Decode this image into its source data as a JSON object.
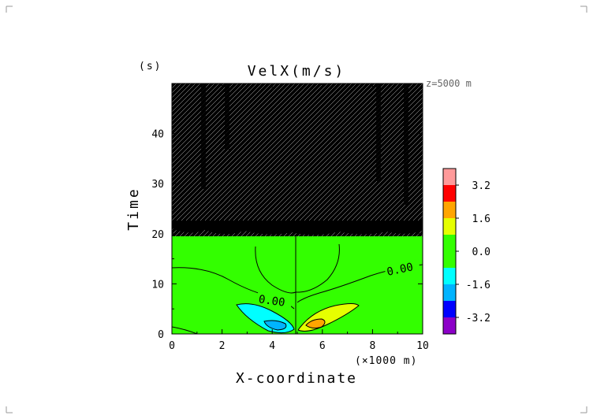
{
  "chart_data": {
    "type": "heatmap",
    "title": "VelX(m/s)",
    "annotation": "z=5000 m",
    "xlabel": "X-coordinate",
    "xunit": "(×1000 m)",
    "ylabel": "Time",
    "yunit": "(s)",
    "xlim": [
      0,
      10
    ],
    "ylim": [
      0,
      50
    ],
    "xticks": [
      "0",
      "2",
      "4",
      "6",
      "8",
      "10"
    ],
    "yticks": [
      "0",
      "10",
      "20",
      "30",
      "40"
    ],
    "contour_labels": [
      "0.00",
      "0.00"
    ],
    "colorbar": {
      "tick_labels": [
        "3.2",
        "1.6",
        "0.0",
        "-1.6",
        "-3.2"
      ],
      "levels": [
        {
          "range": [
            3.2,
            4.0
          ],
          "color": "#ff9a9a"
        },
        {
          "range": [
            2.4,
            3.2
          ],
          "color": "#ff0000"
        },
        {
          "range": [
            1.6,
            2.4
          ],
          "color": "#ffa500"
        },
        {
          "range": [
            0.8,
            1.6
          ],
          "color": "#e6ff00"
        },
        {
          "range": [
            0.0,
            0.8
          ],
          "color": "#33ff00"
        },
        {
          "range": [
            -0.8,
            0.0
          ],
          "color": "#33ff00"
        },
        {
          "range": [
            -1.6,
            -0.8
          ],
          "color": "#00ffff"
        },
        {
          "range": [
            -2.4,
            -1.6
          ],
          "color": "#00b4ff"
        },
        {
          "range": [
            -3.2,
            -2.4
          ],
          "color": "#0000ff"
        },
        {
          "range": [
            -4.0,
            -3.2
          ],
          "color": "#8c00c8"
        }
      ]
    },
    "regions": [
      {
        "name": "noise",
        "y_range": [
          21,
          50
        ],
        "description": "dense black contour lines"
      },
      {
        "name": "negative-lobe",
        "x_center": 4.2,
        "y_center": 3.0,
        "min_value": -3.2
      },
      {
        "name": "positive-lobe",
        "x_center": 6.0,
        "y_center": 2.5,
        "max_value": 2.4
      }
    ],
    "grid": false
  }
}
